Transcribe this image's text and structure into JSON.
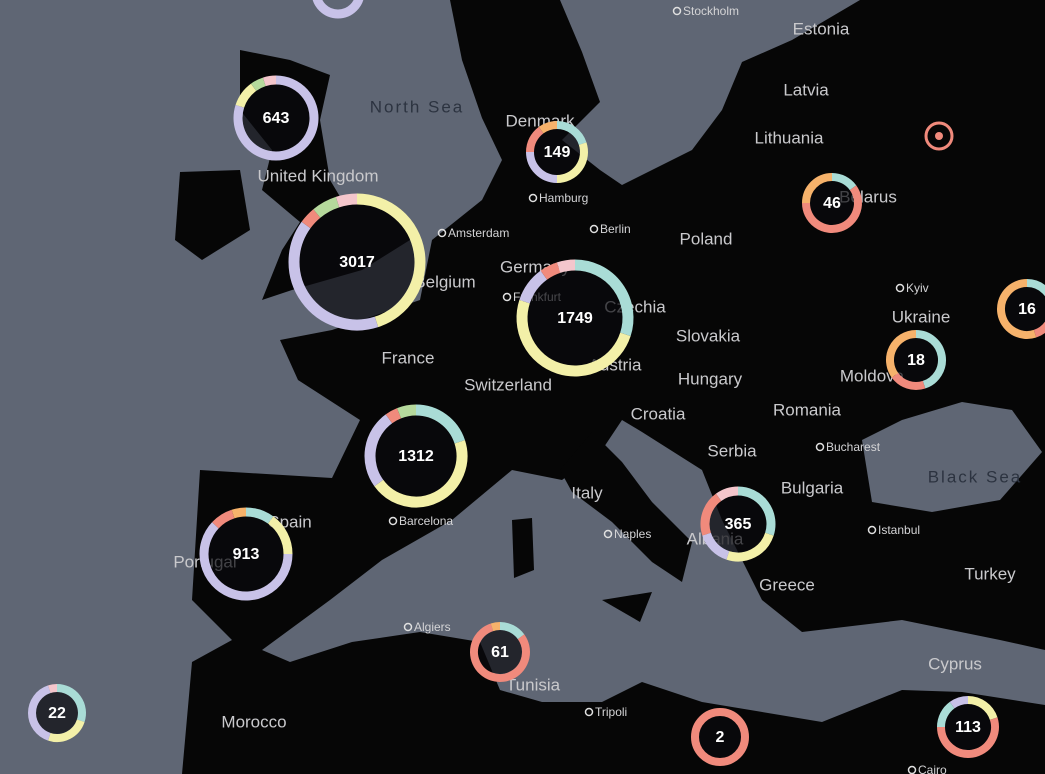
{
  "map": {
    "labels": [
      {
        "text": "North Sea",
        "kind": "sea"
      },
      {
        "text": "Black Sea",
        "kind": "sea"
      },
      {
        "text": "United Kingdom",
        "kind": "country"
      },
      {
        "text": "Denmark",
        "kind": "country"
      },
      {
        "text": "Poland",
        "kind": "country"
      },
      {
        "text": "Germany",
        "kind": "country"
      },
      {
        "text": "Belgium",
        "kind": "country"
      },
      {
        "text": "France",
        "kind": "country"
      },
      {
        "text": "Switzerland",
        "kind": "country"
      },
      {
        "text": "Czechia",
        "kind": "country"
      },
      {
        "text": "Slovakia",
        "kind": "country"
      },
      {
        "text": "Austria",
        "kind": "country"
      },
      {
        "text": "Hungary",
        "kind": "country"
      },
      {
        "text": "Romania",
        "kind": "country"
      },
      {
        "text": "Croatia",
        "kind": "country"
      },
      {
        "text": "Serbia",
        "kind": "country"
      },
      {
        "text": "Bulgaria",
        "kind": "country"
      },
      {
        "text": "Italy",
        "kind": "country"
      },
      {
        "text": "Spain",
        "kind": "country"
      },
      {
        "text": "Portugal",
        "kind": "country"
      },
      {
        "text": "Albania",
        "kind": "country"
      },
      {
        "text": "Greece",
        "kind": "country"
      },
      {
        "text": "Turkey",
        "kind": "country"
      },
      {
        "text": "Ukraine",
        "kind": "country"
      },
      {
        "text": "Moldova",
        "kind": "country"
      },
      {
        "text": "Belarus",
        "kind": "country"
      },
      {
        "text": "Latvia",
        "kind": "country"
      },
      {
        "text": "Lithuania",
        "kind": "country"
      },
      {
        "text": "Estonia",
        "kind": "country"
      },
      {
        "text": "Tunisia",
        "kind": "country"
      },
      {
        "text": "Morocco",
        "kind": "country"
      },
      {
        "text": "Cyprus",
        "kind": "country"
      }
    ],
    "cities": [
      "Stockholm",
      "Hamburg",
      "Amsterdam",
      "Berlin",
      "Frankfurt",
      "Kyiv",
      "Bucharest",
      "Istanbul",
      "Barcelona",
      "Naples",
      "Algiers",
      "Tripoli",
      "Cairo"
    ],
    "clusters": [
      {
        "count": 643,
        "segments": [
          {
            "color": "#c8c2e8",
            "share": 80
          },
          {
            "color": "#f3f0a8",
            "share": 10
          },
          {
            "color": "#b5d99c",
            "share": 5
          },
          {
            "color": "#f4c6cc",
            "share": 5
          }
        ]
      },
      {
        "count": 149,
        "segments": [
          {
            "color": "#a9dcd6",
            "share": 20
          },
          {
            "color": "#f3f0a8",
            "share": 30
          },
          {
            "color": "#c8c2e8",
            "share": 25
          },
          {
            "color": "#f08a7c",
            "share": 15
          },
          {
            "color": "#f6b26b",
            "share": 10
          }
        ]
      },
      {
        "count": 46,
        "segments": [
          {
            "color": "#a9dcd6",
            "share": 15
          },
          {
            "color": "#f08a7c",
            "share": 60
          },
          {
            "color": "#f6b26b",
            "share": 25
          }
        ]
      },
      {
        "count": 3017,
        "segments": [
          {
            "color": "#f3f0a8",
            "share": 45
          },
          {
            "color": "#c8c2e8",
            "share": 40
          },
          {
            "color": "#f08a7c",
            "share": 4
          },
          {
            "color": "#b5d99c",
            "share": 6
          },
          {
            "color": "#f4c6cc",
            "share": 5
          }
        ]
      },
      {
        "count": 1749,
        "segments": [
          {
            "color": "#a9dcd6",
            "share": 30
          },
          {
            "color": "#f3f0a8",
            "share": 50
          },
          {
            "color": "#c8c2e8",
            "share": 10
          },
          {
            "color": "#f08a7c",
            "share": 5
          },
          {
            "color": "#f4c6cc",
            "share": 5
          }
        ]
      },
      {
        "count": 16,
        "segments": [
          {
            "color": "#a9dcd6",
            "share": 25
          },
          {
            "color": "#f08a7c",
            "share": 20
          },
          {
            "color": "#f6b26b",
            "share": 55
          }
        ]
      },
      {
        "count": 18,
        "segments": [
          {
            "color": "#a9dcd6",
            "share": 45
          },
          {
            "color": "#f08a7c",
            "share": 20
          },
          {
            "color": "#f6b26b",
            "share": 35
          }
        ]
      },
      {
        "count": 1312,
        "segments": [
          {
            "color": "#a9dcd6",
            "share": 20
          },
          {
            "color": "#f3f0a8",
            "share": 45
          },
          {
            "color": "#c8c2e8",
            "share": 25
          },
          {
            "color": "#f08a7c",
            "share": 4
          },
          {
            "color": "#b5d99c",
            "share": 6
          }
        ]
      },
      {
        "count": 913,
        "segments": [
          {
            "color": "#a9dcd6",
            "share": 10
          },
          {
            "color": "#f3f0a8",
            "share": 15
          },
          {
            "color": "#c8c2e8",
            "share": 62
          },
          {
            "color": "#f08a7c",
            "share": 8
          },
          {
            "color": "#f6b26b",
            "share": 5
          }
        ]
      },
      {
        "count": 365,
        "segments": [
          {
            "color": "#a9dcd6",
            "share": 30
          },
          {
            "color": "#f3f0a8",
            "share": 25
          },
          {
            "color": "#c8c2e8",
            "share": 15
          },
          {
            "color": "#f08a7c",
            "share": 20
          },
          {
            "color": "#f4c6cc",
            "share": 10
          }
        ]
      },
      {
        "count": 61,
        "segments": [
          {
            "color": "#a9dcd6",
            "share": 15
          },
          {
            "color": "#f08a7c",
            "share": 80
          },
          {
            "color": "#f6b26b",
            "share": 5
          }
        ]
      },
      {
        "count": 22,
        "segments": [
          {
            "color": "#a9dcd6",
            "share": 30
          },
          {
            "color": "#f3f0a8",
            "share": 25
          },
          {
            "color": "#c8c2e8",
            "share": 40
          },
          {
            "color": "#f4c6cc",
            "share": 5
          }
        ]
      },
      {
        "count": 2,
        "segments": [
          {
            "color": "#f08a7c",
            "share": 100
          }
        ]
      },
      {
        "count": 113,
        "segments": [
          {
            "color": "#f3f0a8",
            "share": 20
          },
          {
            "color": "#f08a7c",
            "share": 55
          },
          {
            "color": "#a9dcd6",
            "share": 15
          },
          {
            "color": "#c8c2e8",
            "share": 10
          }
        ]
      }
    ]
  }
}
